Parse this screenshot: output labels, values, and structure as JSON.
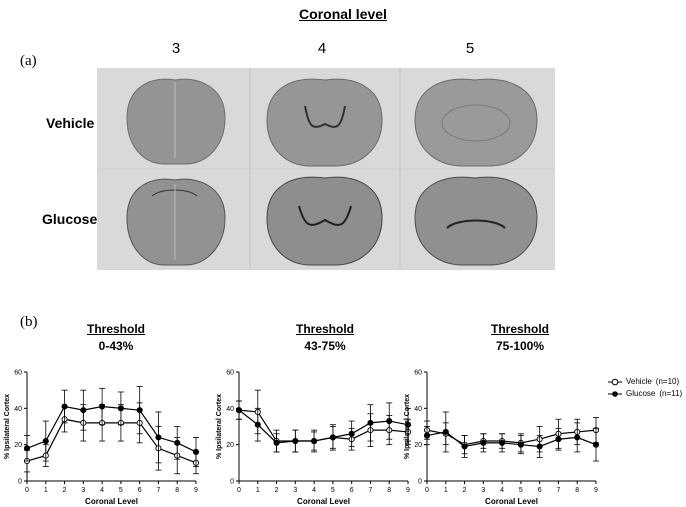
{
  "figure": {
    "heading": "Coronal level",
    "panel_a_label": "(a)",
    "panel_b_label": "(b)",
    "columns": [
      "3",
      "4",
      "5"
    ],
    "rows": [
      "Vehicle",
      "Glucose"
    ]
  },
  "thresholds": [
    {
      "title": "Threshold",
      "range": "0-43%"
    },
    {
      "title": "Threshold",
      "range": "43-75%"
    },
    {
      "title": "Threshold",
      "range": "75-100%"
    }
  ],
  "legend": {
    "vehicle": "Vehicle",
    "vehicle_n": "(n=10)",
    "glucose": "Glucose",
    "glucose_n": "(n=11)"
  },
  "colors": {
    "line": "#000000",
    "photo_bg": "#d8d8d8",
    "tissue": "#8f8f8f"
  },
  "chart_data": [
    {
      "type": "line",
      "title": "",
      "xlabel": "Coronal Level",
      "ylabel": "% Ipsilateral Cortex",
      "ylim": [
        0,
        60
      ],
      "yticks": [
        0,
        20,
        40,
        60
      ],
      "x": [
        0,
        1,
        2,
        3,
        4,
        5,
        6,
        7,
        8,
        9
      ],
      "series": [
        {
          "name": "Vehicle",
          "values": [
            11,
            14,
            34,
            32,
            32,
            32,
            32,
            18,
            14,
            10
          ],
          "err": [
            6,
            6,
            7,
            10,
            10,
            10,
            11,
            12,
            10,
            6
          ],
          "marker": "open"
        },
        {
          "name": "Glucose",
          "values": [
            18,
            22,
            41,
            39,
            41,
            40,
            39,
            24,
            21,
            16
          ],
          "err": [
            7,
            11,
            9,
            11,
            10,
            9,
            13,
            14,
            9,
            8
          ],
          "marker": "filled"
        }
      ]
    },
    {
      "type": "line",
      "title": "",
      "xlabel": "Coronal Level",
      "ylabel": "% Ipsilateral Cortex",
      "ylim": [
        0,
        60
      ],
      "yticks": [
        0,
        20,
        40,
        60
      ],
      "x": [
        0,
        1,
        2,
        3,
        4,
        5,
        6,
        7,
        8,
        9
      ],
      "series": [
        {
          "name": "Vehicle",
          "values": [
            39,
            38,
            22,
            22,
            22,
            24,
            23,
            28,
            28,
            27
          ],
          "err": [
            5,
            12,
            6,
            6,
            5,
            6,
            6,
            9,
            8,
            7
          ],
          "marker": "open"
        },
        {
          "name": "Glucose",
          "values": [
            39,
            31,
            21,
            22,
            22,
            24,
            26,
            32,
            33,
            31
          ],
          "err": [
            5,
            9,
            5,
            6,
            6,
            7,
            7,
            10,
            10,
            9
          ],
          "marker": "filled"
        }
      ]
    },
    {
      "type": "line",
      "title": "",
      "xlabel": "Coronal Level",
      "ylabel": "% Ipsilateral Cortex",
      "ylim": [
        0,
        60
      ],
      "yticks": [
        0,
        20,
        40,
        60
      ],
      "x": [
        0,
        1,
        2,
        3,
        4,
        5,
        6,
        7,
        8,
        9
      ],
      "series": [
        {
          "name": "Vehicle",
          "values": [
            28,
            26,
            20,
            22,
            22,
            21,
            23,
            26,
            27,
            28
          ],
          "err": [
            5,
            6,
            5,
            4,
            4,
            5,
            7,
            8,
            7,
            7
          ],
          "marker": "open"
        },
        {
          "name": "Glucose",
          "values": [
            25,
            27,
            19,
            21,
            21,
            20,
            19,
            23,
            24,
            20
          ],
          "err": [
            5,
            11,
            6,
            5,
            5,
            5,
            6,
            6,
            8,
            9
          ],
          "marker": "filled"
        }
      ]
    }
  ]
}
